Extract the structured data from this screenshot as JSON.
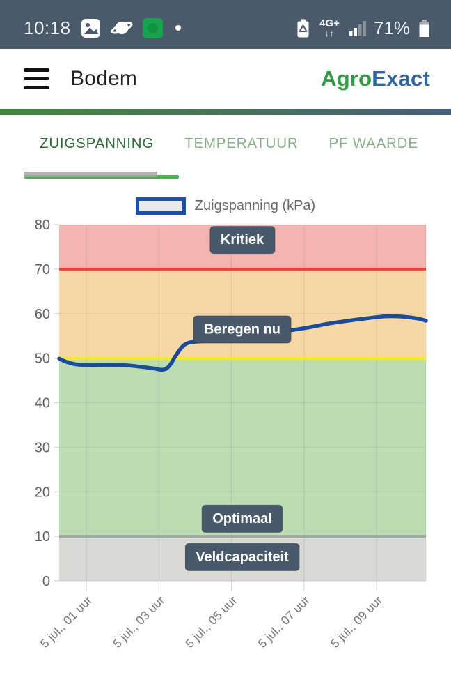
{
  "status_bar": {
    "time": "10:18",
    "battery_percent": "71%",
    "network_label": "4G+",
    "network_arrows": "↓↑"
  },
  "header": {
    "title": "Bodem",
    "brand_green": "Agro",
    "brand_blue": "Exact"
  },
  "tabs": {
    "items": [
      {
        "label": "ZUIGSPANNING",
        "active": true
      },
      {
        "label": "TEMPERATUUR",
        "active": false
      },
      {
        "label": "PF WAARDE",
        "active": false
      }
    ]
  },
  "legend": {
    "label": "Zuigspanning (kPa)"
  },
  "chart_data": {
    "type": "line",
    "title": "",
    "ylim": [
      0,
      80
    ],
    "y_ticks": [
      0,
      10,
      20,
      30,
      40,
      50,
      60,
      70,
      80
    ],
    "x_unit": "hours",
    "xlim_hours": [
      0.25,
      10.36
    ],
    "x_ticks": [
      {
        "hour": 1,
        "label": "5 jul., 01 uur"
      },
      {
        "hour": 3,
        "label": "5 jul., 03 uur"
      },
      {
        "hour": 5,
        "label": "5 jul., 05 uur"
      },
      {
        "hour": 7,
        "label": "5 jul., 07 uur"
      },
      {
        "hour": 9,
        "label": "5 jul., 09 uur"
      }
    ],
    "grid": true,
    "legend_position": "top",
    "label_box_color": "#47596b",
    "label_text_color": "#ffffff",
    "zones": [
      {
        "name": "Kritiek",
        "from": 70,
        "to": 80,
        "color": "#f2b5b1",
        "label_at": 76.7
      },
      {
        "name": "Beregen nu",
        "from": 50,
        "to": 70,
        "color": "#f5d8a6",
        "label_at": 56.6
      },
      {
        "name": "Optimaal",
        "from": 10,
        "to": 50,
        "color": "#bcdcb3",
        "label_at": 14.1
      },
      {
        "name": "Veldcapaciteit",
        "from": 0,
        "to": 10,
        "color": "#d9d9d6",
        "label_at": 5.5
      }
    ],
    "threshold_lines": [
      {
        "value": 70,
        "color": "#e1453a",
        "width": 4
      },
      {
        "value": 50,
        "color": "#f6e83b",
        "width": 5
      },
      {
        "value": 10,
        "color": "#9fa59f",
        "width": 4
      }
    ],
    "series": [
      {
        "name": "Zuigspanning (kPa)",
        "color": "#1c4b9d",
        "points": [
          [
            0.25,
            49.9
          ],
          [
            0.44,
            49.2
          ],
          [
            0.73,
            48.6
          ],
          [
            1.12,
            48.4
          ],
          [
            1.59,
            48.5
          ],
          [
            2.07,
            48.4
          ],
          [
            2.46,
            48.1
          ],
          [
            2.84,
            47.7
          ],
          [
            3.11,
            47.4
          ],
          [
            3.28,
            48.2
          ],
          [
            3.46,
            50.5
          ],
          [
            3.65,
            52.6
          ],
          [
            3.84,
            53.5
          ],
          [
            4.18,
            53.8
          ],
          [
            4.76,
            54.3
          ],
          [
            5.34,
            54.9
          ],
          [
            5.91,
            55.5
          ],
          [
            6.49,
            56.1
          ],
          [
            7.06,
            56.8
          ],
          [
            7.64,
            57.7
          ],
          [
            8.21,
            58.4
          ],
          [
            8.79,
            59.0
          ],
          [
            9.27,
            59.4
          ],
          [
            9.75,
            59.3
          ],
          [
            10.13,
            58.9
          ],
          [
            10.36,
            58.4
          ]
        ]
      }
    ]
  }
}
